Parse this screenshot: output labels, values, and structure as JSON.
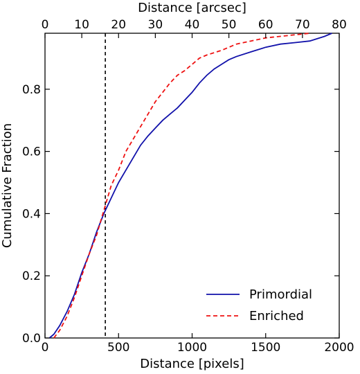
{
  "chart_data": {
    "type": "line",
    "xlabel": "Distance [pixels]",
    "ylabel": "Cumulative Fraction",
    "top_xlabel": "Distance [arcsec]",
    "xlim": [
      0,
      2000
    ],
    "ylim": [
      0,
      0.98
    ],
    "top_xlim": [
      0,
      80
    ],
    "x_ticks": [
      0,
      500,
      1000,
      1500,
      2000
    ],
    "y_ticks": [
      0.0,
      0.2,
      0.4,
      0.6,
      0.8
    ],
    "top_x_ticks": [
      0,
      10,
      20,
      30,
      40,
      50,
      60,
      70,
      80
    ],
    "grid": false,
    "legend_position": "lower-right",
    "vline": {
      "x": 410,
      "style": "dashed",
      "color": "#000000"
    },
    "series": [
      {
        "name": "Primordial",
        "color": "#1111aa",
        "style": "solid",
        "points": [
          [
            30,
            0.0
          ],
          [
            60,
            0.012
          ],
          [
            100,
            0.04
          ],
          [
            150,
            0.085
          ],
          [
            200,
            0.14
          ],
          [
            250,
            0.21
          ],
          [
            300,
            0.27
          ],
          [
            350,
            0.34
          ],
          [
            400,
            0.4
          ],
          [
            450,
            0.45
          ],
          [
            500,
            0.5
          ],
          [
            550,
            0.54
          ],
          [
            600,
            0.58
          ],
          [
            650,
            0.62
          ],
          [
            700,
            0.65
          ],
          [
            750,
            0.675
          ],
          [
            800,
            0.7
          ],
          [
            850,
            0.72
          ],
          [
            900,
            0.74
          ],
          [
            950,
            0.765
          ],
          [
            1000,
            0.79
          ],
          [
            1050,
            0.82
          ],
          [
            1100,
            0.845
          ],
          [
            1150,
            0.865
          ],
          [
            1200,
            0.88
          ],
          [
            1250,
            0.895
          ],
          [
            1300,
            0.905
          ],
          [
            1400,
            0.92
          ],
          [
            1500,
            0.935
          ],
          [
            1600,
            0.945
          ],
          [
            1700,
            0.95
          ],
          [
            1800,
            0.955
          ],
          [
            1900,
            0.97
          ],
          [
            1950,
            0.98
          ]
        ]
      },
      {
        "name": "Enriched",
        "color": "#ee1111",
        "style": "dashed",
        "points": [
          [
            60,
            0.0
          ],
          [
            100,
            0.025
          ],
          [
            150,
            0.07
          ],
          [
            200,
            0.13
          ],
          [
            250,
            0.2
          ],
          [
            300,
            0.27
          ],
          [
            350,
            0.33
          ],
          [
            400,
            0.41
          ],
          [
            450,
            0.49
          ],
          [
            500,
            0.54
          ],
          [
            550,
            0.6
          ],
          [
            600,
            0.64
          ],
          [
            650,
            0.68
          ],
          [
            700,
            0.72
          ],
          [
            750,
            0.76
          ],
          [
            800,
            0.79
          ],
          [
            850,
            0.82
          ],
          [
            900,
            0.845
          ],
          [
            950,
            0.86
          ],
          [
            1000,
            0.88
          ],
          [
            1050,
            0.9
          ],
          [
            1100,
            0.91
          ],
          [
            1200,
            0.925
          ],
          [
            1300,
            0.945
          ],
          [
            1400,
            0.955
          ],
          [
            1500,
            0.965
          ],
          [
            1600,
            0.97
          ],
          [
            1700,
            0.975
          ],
          [
            1800,
            0.98
          ]
        ]
      }
    ]
  }
}
